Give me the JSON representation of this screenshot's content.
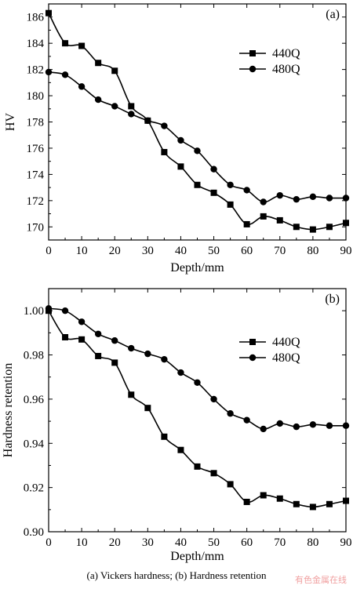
{
  "caption": "(a) Vickers hardness; (b) Hardness retention",
  "watermark": "有色金属在线",
  "chart_data": [
    {
      "type": "line",
      "panel_label": "(a)",
      "xlabel": "Depth/mm",
      "ylabel": "HV",
      "xlim": [
        0,
        90
      ],
      "ylim": [
        169,
        187
      ],
      "xticks": [
        0,
        10,
        20,
        30,
        40,
        50,
        60,
        70,
        80,
        90
      ],
      "yticks": [
        170,
        172,
        174,
        176,
        178,
        180,
        182,
        184,
        186
      ],
      "ytick_labels": [
        "170",
        "172",
        "174",
        "176",
        "178",
        "180",
        "182",
        "184",
        "186"
      ],
      "x": [
        0,
        5,
        10,
        15,
        20,
        25,
        30,
        35,
        40,
        45,
        50,
        55,
        60,
        65,
        70,
        75,
        80,
        85,
        90
      ],
      "legend_position": "upper-right",
      "series": [
        {
          "name": "440Q",
          "marker": "square",
          "values": [
            186.3,
            184.0,
            183.8,
            182.5,
            181.9,
            179.2,
            178.1,
            175.7,
            174.6,
            173.2,
            172.6,
            171.7,
            170.2,
            170.8,
            170.5,
            170.0,
            169.8,
            170.0,
            170.3
          ]
        },
        {
          "name": "480Q",
          "marker": "circle",
          "values": [
            181.8,
            181.6,
            180.7,
            179.7,
            179.2,
            178.6,
            178.1,
            177.7,
            176.6,
            175.8,
            174.4,
            173.2,
            172.8,
            171.9,
            172.4,
            172.1,
            172.3,
            172.2,
            172.2
          ]
        }
      ]
    },
    {
      "type": "line",
      "panel_label": "(b)",
      "xlabel": "Depth/mm",
      "ylabel": "Hardness retention",
      "xlim": [
        0,
        90
      ],
      "ylim": [
        0.9,
        1.01
      ],
      "xticks": [
        0,
        10,
        20,
        30,
        40,
        50,
        60,
        70,
        80,
        90
      ],
      "yticks": [
        0.9,
        0.92,
        0.94,
        0.96,
        0.98,
        1.0
      ],
      "ytick_labels": [
        "0.90",
        "0.92",
        "0.94",
        "0.96",
        "0.98",
        "1.00"
      ],
      "x": [
        0,
        5,
        10,
        15,
        20,
        25,
        30,
        35,
        40,
        45,
        50,
        55,
        60,
        65,
        70,
        75,
        80,
        85,
        90
      ],
      "legend_position": "upper-right",
      "series": [
        {
          "name": "440Q",
          "marker": "square",
          "values": [
            1.0,
            0.988,
            0.987,
            0.9795,
            0.9765,
            0.962,
            0.956,
            0.943,
            0.937,
            0.9295,
            0.9265,
            0.9215,
            0.9135,
            0.9165,
            0.915,
            0.9125,
            0.9112,
            0.9125,
            0.914
          ]
        },
        {
          "name": "480Q",
          "marker": "circle",
          "values": [
            1.001,
            1.0,
            0.995,
            0.9895,
            0.9865,
            0.983,
            0.9805,
            0.978,
            0.972,
            0.9675,
            0.96,
            0.9535,
            0.9505,
            0.9465,
            0.949,
            0.9475,
            0.9485,
            0.948,
            0.948
          ]
        }
      ]
    }
  ]
}
